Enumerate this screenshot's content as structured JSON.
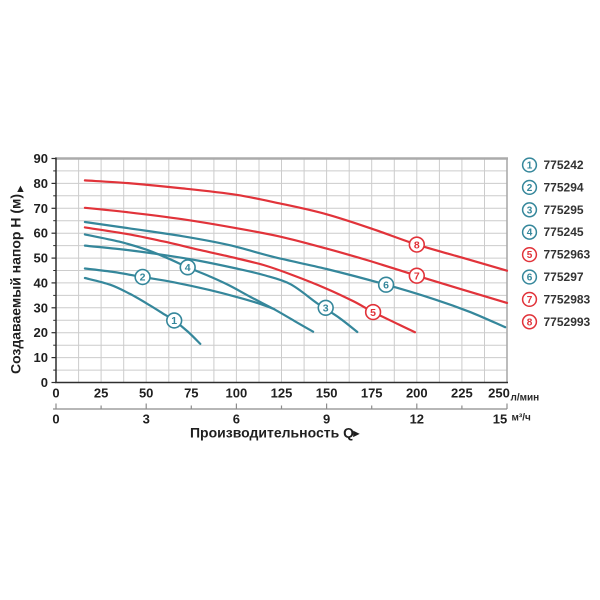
{
  "page": {
    "background": "#ffffff"
  },
  "chart_data": {
    "type": "line",
    "title": "",
    "ylabel": "Создаваемый напор H (м)",
    "ylabel_arrow": "▲",
    "xlabel": "Производительность Q",
    "xlabel_arrow": "►",
    "y_axis": {
      "range": [
        0,
        90
      ],
      "ticks": [
        90,
        80,
        70,
        60,
        50,
        40,
        30,
        20,
        10,
        0
      ],
      "grid_step": 5
    },
    "x_axis_primary": {
      "unit": "л/мин",
      "range": [
        0,
        250
      ],
      "ticks": [
        0,
        25,
        50,
        75,
        100,
        125,
        150,
        175,
        200,
        225,
        250
      ],
      "grid_step": 12.5
    },
    "x_axis_secondary": {
      "unit": "м³/ч",
      "range": [
        0,
        15
      ],
      "ticks": [
        0,
        3,
        6,
        9,
        12,
        15
      ],
      "minor_step": 1.5
    },
    "grid": true,
    "legend_position": "right",
    "colors": {
      "teal": "#35879B",
      "red": "#E1333A",
      "grid": "#CCCCCC",
      "frame": "#ABABAB",
      "axis": "#2F2F2F",
      "scale2": "#8C8C8C",
      "text": "#1F1F1F",
      "badge_fill": "#FFFFFF"
    },
    "series": [
      {
        "num": "1",
        "code": "775242",
        "color": "teal",
        "badge_at": [
          65.5,
          24.9
        ],
        "points": [
          [
            16,
            42
          ],
          [
            30,
            39.3
          ],
          [
            41,
            35.6
          ],
          [
            52,
            31
          ],
          [
            60,
            27.4
          ],
          [
            65.5,
            24.9
          ],
          [
            73,
            20.5
          ],
          [
            80,
            15.5
          ]
        ]
      },
      {
        "num": "2",
        "code": "775294",
        "color": "teal",
        "badge_at": [
          48,
          42.4
        ],
        "points": [
          [
            16,
            45.8
          ],
          [
            32,
            44.4
          ],
          [
            48,
            42.4
          ],
          [
            65,
            40.3
          ],
          [
            85,
            37.2
          ],
          [
            100,
            34.4
          ],
          [
            110,
            32.3
          ],
          [
            121,
            29.5
          ]
        ]
      },
      {
        "num": "3",
        "code": "775295",
        "color": "teal",
        "badge_at": [
          149.5,
          30
        ],
        "points": [
          [
            16,
            55
          ],
          [
            40,
            53.2
          ],
          [
            60,
            51.2
          ],
          [
            80,
            48.8
          ],
          [
            100,
            45.8
          ],
          [
            115,
            43.2
          ],
          [
            130,
            39.5
          ],
          [
            145,
            31.7
          ],
          [
            157,
            26
          ],
          [
            167,
            20.3
          ]
        ]
      },
      {
        "num": "4",
        "code": "775245",
        "color": "teal",
        "badge_at": [
          73,
          46.3
        ],
        "points": [
          [
            16,
            59.5
          ],
          [
            35,
            56.6
          ],
          [
            50,
            53.4
          ],
          [
            62,
            49.9
          ],
          [
            73,
            46.3
          ],
          [
            85,
            42.7
          ],
          [
            96,
            39
          ],
          [
            108,
            34.3
          ],
          [
            121,
            29.4
          ],
          [
            132,
            24.8
          ],
          [
            142.5,
            20.4
          ]
        ]
      },
      {
        "num": "5",
        "code": "7752963",
        "color": "red",
        "badge_at": [
          175.8,
          28.3
        ],
        "points": [
          [
            16,
            62.3
          ],
          [
            40,
            59.6
          ],
          [
            60,
            56.6
          ],
          [
            80,
            53.2
          ],
          [
            96,
            50.6
          ],
          [
            115,
            47.2
          ],
          [
            131,
            43.2
          ],
          [
            150,
            37.7
          ],
          [
            165,
            32.6
          ],
          [
            175.8,
            28.3
          ],
          [
            190,
            23.3
          ],
          [
            199,
            20.2
          ]
        ]
      },
      {
        "num": "6",
        "code": "775297",
        "color": "teal",
        "badge_at": [
          183,
          39.3
        ],
        "points": [
          [
            16,
            64.5
          ],
          [
            40,
            62
          ],
          [
            70,
            58.8
          ],
          [
            96,
            55.2
          ],
          [
            122,
            50.2
          ],
          [
            150,
            45.6
          ],
          [
            183,
            39.3
          ],
          [
            210,
            33.4
          ],
          [
            230,
            28.2
          ],
          [
            249,
            22.2
          ]
        ]
      },
      {
        "num": "7",
        "code": "7752983",
        "color": "red",
        "badge_at": [
          200,
          42.9
        ],
        "points": [
          [
            16,
            70.2
          ],
          [
            40,
            68.4
          ],
          [
            70,
            65.6
          ],
          [
            100,
            62
          ],
          [
            125,
            58.5
          ],
          [
            150,
            53.8
          ],
          [
            175,
            48.6
          ],
          [
            200,
            42.9
          ],
          [
            225,
            37.4
          ],
          [
            250,
            32
          ]
        ]
      },
      {
        "num": "8",
        "code": "7752993",
        "color": "red",
        "badge_at": [
          200,
          55.4
        ],
        "points": [
          [
            16,
            81.2
          ],
          [
            40,
            80.1
          ],
          [
            70,
            78
          ],
          [
            100,
            75.4
          ],
          [
            125,
            71.8
          ],
          [
            150,
            67.6
          ],
          [
            175,
            61.8
          ],
          [
            200,
            55.4
          ],
          [
            225,
            50.2
          ],
          [
            250,
            44.9
          ]
        ]
      }
    ],
    "legend": [
      {
        "num": "1",
        "code": "775242",
        "color": "teal"
      },
      {
        "num": "2",
        "code": "775294",
        "color": "teal"
      },
      {
        "num": "3",
        "code": "775295",
        "color": "teal"
      },
      {
        "num": "4",
        "code": "775245",
        "color": "teal"
      },
      {
        "num": "5",
        "code": "7752963",
        "color": "red"
      },
      {
        "num": "6",
        "code": "775297",
        "color": "teal"
      },
      {
        "num": "7",
        "code": "7752983",
        "color": "red"
      },
      {
        "num": "8",
        "code": "7752993",
        "color": "red"
      }
    ]
  }
}
